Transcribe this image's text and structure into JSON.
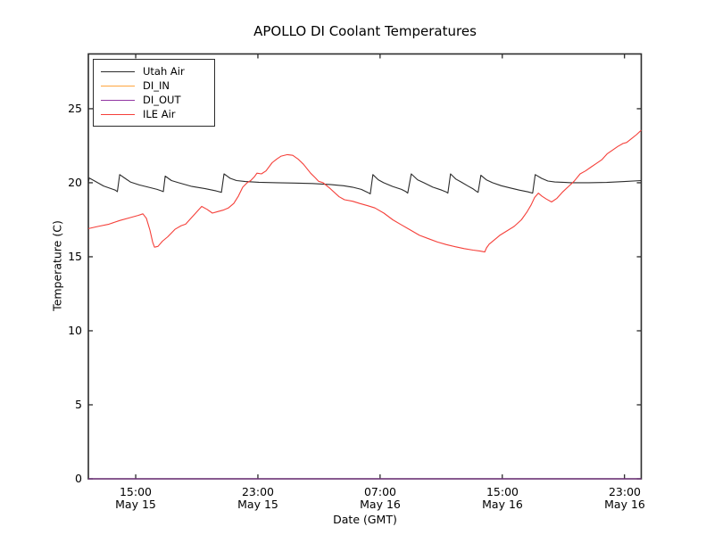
{
  "chart_data": {
    "type": "line",
    "title": "APOLLO DI Coolant Temperatures",
    "xlabel": "Date (GMT)",
    "ylabel": "Temperature (C)",
    "x_unit": "hours since May 15 00:00 GMT",
    "xlim": [
      11.9,
      48.1
    ],
    "ylim": [
      0,
      28.7
    ],
    "grid": false,
    "legend_position": "upper left",
    "frame_color": "#2b2b2b",
    "series": [
      {
        "name": "Utah Air",
        "color": "#2b2b2b",
        "points": [
          [
            11.9,
            20.05
          ],
          [
            11.96,
            20.32
          ],
          [
            12.26,
            20.15
          ],
          [
            12.9,
            19.78
          ],
          [
            13.66,
            19.5
          ],
          [
            13.8,
            19.4
          ],
          [
            13.95,
            20.55
          ],
          [
            14.3,
            20.3
          ],
          [
            14.65,
            20.05
          ],
          [
            15.23,
            19.85
          ],
          [
            15.82,
            19.7
          ],
          [
            16.4,
            19.55
          ],
          [
            16.69,
            19.45
          ],
          [
            16.81,
            19.4
          ],
          [
            16.93,
            20.45
          ],
          [
            17.34,
            20.15
          ],
          [
            17.8,
            20.0
          ],
          [
            18.68,
            19.75
          ],
          [
            19.55,
            19.6
          ],
          [
            20.26,
            19.45
          ],
          [
            20.61,
            19.35
          ],
          [
            20.78,
            20.6
          ],
          [
            21.19,
            20.3
          ],
          [
            21.6,
            20.15
          ],
          [
            22.18,
            20.08
          ],
          [
            23.06,
            20.03
          ],
          [
            24.23,
            20.0
          ],
          [
            25.39,
            19.98
          ],
          [
            26.56,
            19.95
          ],
          [
            27.73,
            19.88
          ],
          [
            28.61,
            19.8
          ],
          [
            29.19,
            19.7
          ],
          [
            29.77,
            19.55
          ],
          [
            30.18,
            19.35
          ],
          [
            30.36,
            19.25
          ],
          [
            30.53,
            20.55
          ],
          [
            30.88,
            20.2
          ],
          [
            31.23,
            20.0
          ],
          [
            31.82,
            19.75
          ],
          [
            32.4,
            19.55
          ],
          [
            32.69,
            19.4
          ],
          [
            32.81,
            19.3
          ],
          [
            33.04,
            20.6
          ],
          [
            33.45,
            20.2
          ],
          [
            33.86,
            20.0
          ],
          [
            34.45,
            19.7
          ],
          [
            35.03,
            19.5
          ],
          [
            35.32,
            19.38
          ],
          [
            35.44,
            19.3
          ],
          [
            35.61,
            20.6
          ],
          [
            35.96,
            20.25
          ],
          [
            36.31,
            20.05
          ],
          [
            36.72,
            19.8
          ],
          [
            37.07,
            19.6
          ],
          [
            37.31,
            19.42
          ],
          [
            37.42,
            19.35
          ],
          [
            37.6,
            20.5
          ],
          [
            37.95,
            20.2
          ],
          [
            38.36,
            20.0
          ],
          [
            38.94,
            19.8
          ],
          [
            39.53,
            19.65
          ],
          [
            40.11,
            19.5
          ],
          [
            40.69,
            19.38
          ],
          [
            40.99,
            19.3
          ],
          [
            41.16,
            20.55
          ],
          [
            41.57,
            20.3
          ],
          [
            41.98,
            20.12
          ],
          [
            42.44,
            20.05
          ],
          [
            43.5,
            20.0
          ],
          [
            44.66,
            20.0
          ],
          [
            45.83,
            20.02
          ],
          [
            47.0,
            20.08
          ],
          [
            48.1,
            20.15
          ]
        ]
      },
      {
        "name": "DI_IN",
        "color": "#ffa53e",
        "points": [
          [
            11.9,
            0
          ],
          [
            48.1,
            0
          ]
        ]
      },
      {
        "name": "DI_OUT",
        "color": "#9136a2",
        "points": [
          [
            11.9,
            0
          ],
          [
            48.1,
            0
          ]
        ]
      },
      {
        "name": "ILE Air",
        "color": "#f5403a",
        "points": [
          [
            11.9,
            16.9
          ],
          [
            12.55,
            17.05
          ],
          [
            13.25,
            17.2
          ],
          [
            13.95,
            17.45
          ],
          [
            14.65,
            17.65
          ],
          [
            15.18,
            17.8
          ],
          [
            15.47,
            17.9
          ],
          [
            15.7,
            17.6
          ],
          [
            15.93,
            16.8
          ],
          [
            16.11,
            16.0
          ],
          [
            16.23,
            15.65
          ],
          [
            16.46,
            15.7
          ],
          [
            16.75,
            16.05
          ],
          [
            17.1,
            16.35
          ],
          [
            17.57,
            16.85
          ],
          [
            17.98,
            17.1
          ],
          [
            18.27,
            17.2
          ],
          [
            18.62,
            17.6
          ],
          [
            18.97,
            18.0
          ],
          [
            19.32,
            18.4
          ],
          [
            19.67,
            18.2
          ],
          [
            20.02,
            17.95
          ],
          [
            20.37,
            18.05
          ],
          [
            20.72,
            18.15
          ],
          [
            21.07,
            18.3
          ],
          [
            21.42,
            18.6
          ],
          [
            21.72,
            19.1
          ],
          [
            22.01,
            19.7
          ],
          [
            22.3,
            20.0
          ],
          [
            22.53,
            20.15
          ],
          [
            22.77,
            20.4
          ],
          [
            22.94,
            20.65
          ],
          [
            23.23,
            20.6
          ],
          [
            23.53,
            20.8
          ],
          [
            23.93,
            21.35
          ],
          [
            24.23,
            21.6
          ],
          [
            24.52,
            21.8
          ],
          [
            24.93,
            21.9
          ],
          [
            25.28,
            21.85
          ],
          [
            25.63,
            21.6
          ],
          [
            25.98,
            21.25
          ],
          [
            26.45,
            20.65
          ],
          [
            26.74,
            20.35
          ],
          [
            26.97,
            20.1
          ],
          [
            27.27,
            20.0
          ],
          [
            27.74,
            19.6
          ],
          [
            28.32,
            19.05
          ],
          [
            28.67,
            18.85
          ],
          [
            29.2,
            18.75
          ],
          [
            29.67,
            18.6
          ],
          [
            30.19,
            18.45
          ],
          [
            30.66,
            18.3
          ],
          [
            31.25,
            17.95
          ],
          [
            31.83,
            17.5
          ],
          [
            32.41,
            17.15
          ],
          [
            33.0,
            16.8
          ],
          [
            33.58,
            16.45
          ],
          [
            34.17,
            16.22
          ],
          [
            34.75,
            16.0
          ],
          [
            35.34,
            15.82
          ],
          [
            35.92,
            15.68
          ],
          [
            36.5,
            15.55
          ],
          [
            37.09,
            15.45
          ],
          [
            37.56,
            15.38
          ],
          [
            37.85,
            15.32
          ],
          [
            37.97,
            15.6
          ],
          [
            38.14,
            15.85
          ],
          [
            38.49,
            16.15
          ],
          [
            38.84,
            16.45
          ],
          [
            39.31,
            16.75
          ],
          [
            39.78,
            17.05
          ],
          [
            40.25,
            17.5
          ],
          [
            40.6,
            18.0
          ],
          [
            40.89,
            18.5
          ],
          [
            41.12,
            19.0
          ],
          [
            41.36,
            19.3
          ],
          [
            41.59,
            19.1
          ],
          [
            41.88,
            18.9
          ],
          [
            42.23,
            18.7
          ],
          [
            42.58,
            18.95
          ],
          [
            42.93,
            19.35
          ],
          [
            43.34,
            19.75
          ],
          [
            43.7,
            20.1
          ],
          [
            44.1,
            20.6
          ],
          [
            44.45,
            20.8
          ],
          [
            44.8,
            21.05
          ],
          [
            45.15,
            21.3
          ],
          [
            45.51,
            21.55
          ],
          [
            45.86,
            21.95
          ],
          [
            46.21,
            22.2
          ],
          [
            46.56,
            22.45
          ],
          [
            46.91,
            22.65
          ],
          [
            47.14,
            22.72
          ],
          [
            47.49,
            23.0
          ],
          [
            47.79,
            23.25
          ],
          [
            48.1,
            23.55
          ]
        ]
      }
    ]
  },
  "axes": {
    "x_ticks": [
      {
        "hour": 15,
        "time": "15:00",
        "date": "May 15"
      },
      {
        "hour": 23,
        "time": "23:00",
        "date": "May 15"
      },
      {
        "hour": 31,
        "time": "07:00",
        "date": "May 16"
      },
      {
        "hour": 39,
        "time": "15:00",
        "date": "May 16"
      },
      {
        "hour": 47,
        "time": "23:00",
        "date": "May 16"
      }
    ],
    "y_ticks": [
      {
        "value": 0,
        "label": "0"
      },
      {
        "value": 5,
        "label": "5"
      },
      {
        "value": 10,
        "label": "10"
      },
      {
        "value": 15,
        "label": "15"
      },
      {
        "value": 20,
        "label": "20"
      },
      {
        "value": 25,
        "label": "25"
      }
    ]
  }
}
